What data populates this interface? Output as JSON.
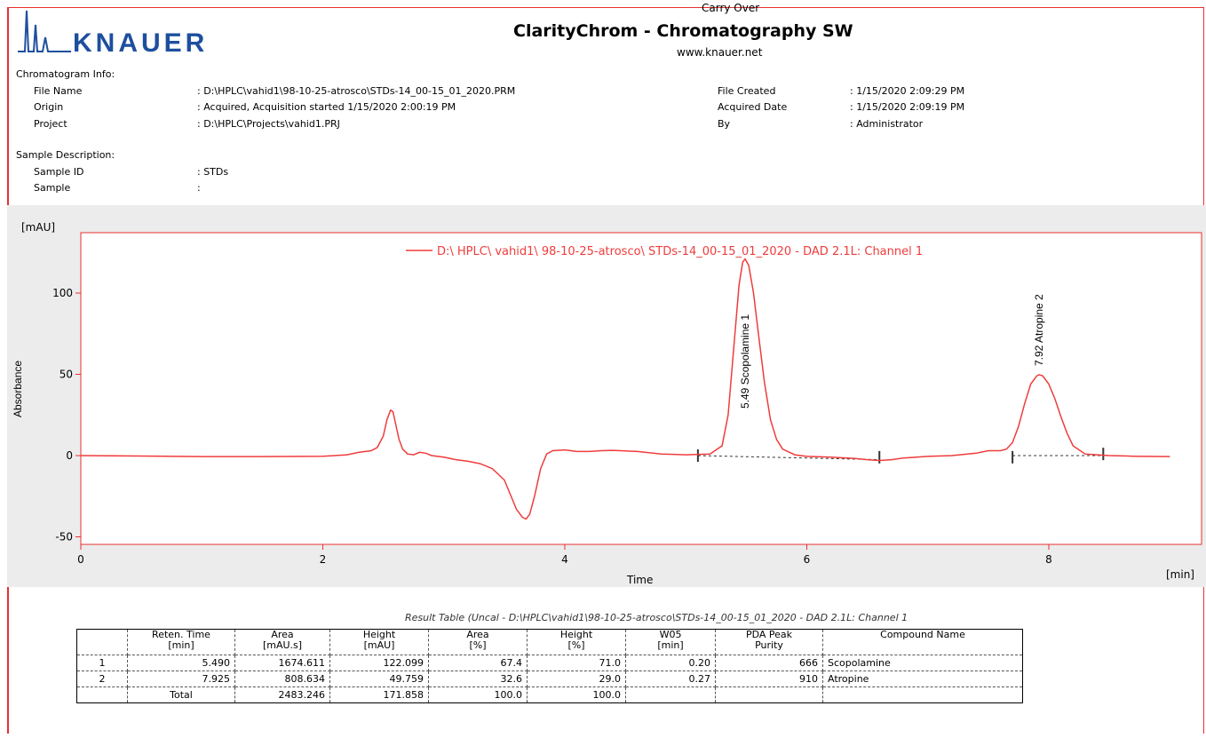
{
  "header": {
    "logo_text": "KNAUER",
    "carry_over": "Carry Over",
    "title": "ClarityChrom - Chromatography SW",
    "website": "www.knauer.net"
  },
  "chromatogram_info": {
    "heading": "Chromatogram Info:",
    "file_name_label": "File Name",
    "file_name_value": ": D:\\HPLC\\vahid1\\98-10-25-atrosco\\STDs-14_00-15_01_2020.PRM",
    "origin_label": "Origin",
    "origin_value": ": Acquired, Acquisition started 1/15/2020 2:00:19 PM",
    "project_label": "Project",
    "project_value": ": D:\\HPLC\\Projects\\vahid1.PRJ",
    "file_created_label": "File Created",
    "file_created_value": ": 1/15/2020 2:09:29 PM",
    "acquired_date_label": "Acquired Date",
    "acquired_date_value": ": 1/15/2020 2:09:19 PM",
    "by_label": "By",
    "by_value": ": Administrator"
  },
  "sample_description": {
    "heading": "Sample Description:",
    "sample_id_label": "Sample ID",
    "sample_id_value": ": STDs",
    "sample_label": "Sample",
    "sample_value": ":"
  },
  "chart_data": {
    "type": "line",
    "title": "",
    "xlabel": "Time",
    "ylabel": "Absorbance",
    "x_unit": "[min]",
    "y_unit": "[mAU]",
    "xlim": [
      0,
      9.4
    ],
    "ylim": [
      -52,
      128
    ],
    "x_ticks": [
      0,
      2,
      4,
      6,
      8
    ],
    "y_ticks": [
      -50,
      0,
      50,
      100
    ],
    "grid": false,
    "legend_position": "top-right",
    "line_color": "#f03c3c",
    "series": [
      {
        "name": "D:\\ HPLC\\ vahid1\\ 98-10-25-atrosco\\ STDs-14_00-15_01_2020 - DAD 2.1L: Channel 1",
        "x": [
          0,
          0.5,
          1.0,
          1.5,
          2.0,
          2.1,
          2.2,
          2.3,
          2.4,
          2.45,
          2.5,
          2.53,
          2.56,
          2.58,
          2.6,
          2.63,
          2.66,
          2.7,
          2.75,
          2.8,
          2.85,
          2.9,
          3.0,
          3.1,
          3.2,
          3.3,
          3.4,
          3.5,
          3.55,
          3.6,
          3.65,
          3.68,
          3.71,
          3.75,
          3.8,
          3.85,
          3.9,
          4.0,
          4.1,
          4.2,
          4.3,
          4.4,
          4.6,
          4.8,
          5.0,
          5.2,
          5.3,
          5.35,
          5.4,
          5.44,
          5.47,
          5.49,
          5.52,
          5.56,
          5.6,
          5.65,
          5.7,
          5.75,
          5.8,
          5.9,
          6.0,
          6.2,
          6.4,
          6.5,
          6.6,
          6.7,
          6.8,
          7.0,
          7.2,
          7.4,
          7.5,
          7.6,
          7.65,
          7.7,
          7.75,
          7.8,
          7.85,
          7.9,
          7.92,
          7.95,
          8.0,
          8.05,
          8.1,
          8.15,
          8.2,
          8.3,
          8.4,
          8.5,
          8.7,
          9.0
        ],
        "y": [
          0,
          -0.3,
          -0.6,
          -0.6,
          -0.4,
          0,
          0.5,
          2,
          3,
          5,
          12,
          22,
          28,
          27,
          20,
          10,
          4,
          1,
          0.5,
          2,
          1.5,
          0,
          -1,
          -2.5,
          -3.5,
          -5,
          -8,
          -15,
          -24,
          -33,
          -38,
          -39,
          -36,
          -25,
          -8,
          1,
          3,
          3.5,
          2.5,
          2.5,
          3,
          3.2,
          2.5,
          1,
          0.5,
          1,
          6,
          25,
          70,
          105,
          119,
          121,
          117,
          100,
          75,
          45,
          22,
          10,
          4,
          0.5,
          -0.5,
          -1,
          -1.8,
          -2.5,
          -3,
          -2.5,
          -1.5,
          -0.5,
          0,
          1.5,
          3,
          3,
          4,
          8,
          18,
          32,
          44,
          49,
          49.8,
          49,
          44,
          35,
          24,
          14,
          6,
          1,
          0.5,
          0,
          -0.4,
          -0.6
        ]
      }
    ],
    "annotations": [
      {
        "label": "5.49 Scopolamine   1",
        "x": 5.49
      },
      {
        "label": "7.92 Atropine   2",
        "x": 7.92
      }
    ],
    "y_tick_labels": [
      "-50",
      "0",
      "50",
      "100"
    ],
    "x_tick_labels": [
      "0",
      "2",
      "4",
      "6",
      "8"
    ]
  },
  "result_table": {
    "title": "Result Table (Uncal - D:\\HPLC\\vahid1\\98-10-25-atrosco\\STDs-14_00-15_01_2020 - DAD 2.1L: Channel 1",
    "headers": [
      [
        "",
        ""
      ],
      [
        "Reten. Time",
        "[min]"
      ],
      [
        "Area",
        "[mAU.s]"
      ],
      [
        "Height",
        "[mAU]"
      ],
      [
        "Area",
        "[%]"
      ],
      [
        "Height",
        "[%]"
      ],
      [
        "W05",
        "[min]"
      ],
      [
        "PDA Peak",
        "Purity"
      ],
      [
        "Compound Name",
        ""
      ]
    ],
    "rows": [
      [
        "1",
        "5.490",
        "1674.611",
        "122.099",
        "67.4",
        "71.0",
        "0.20",
        "666",
        "Scopolamine"
      ],
      [
        "2",
        "7.925",
        "808.634",
        "49.759",
        "32.6",
        "29.0",
        "0.27",
        "910",
        "Atropine"
      ],
      [
        "",
        "Total",
        "2483.246",
        "171.858",
        "100.0",
        "100.0",
        "",
        "",
        ""
      ]
    ]
  }
}
